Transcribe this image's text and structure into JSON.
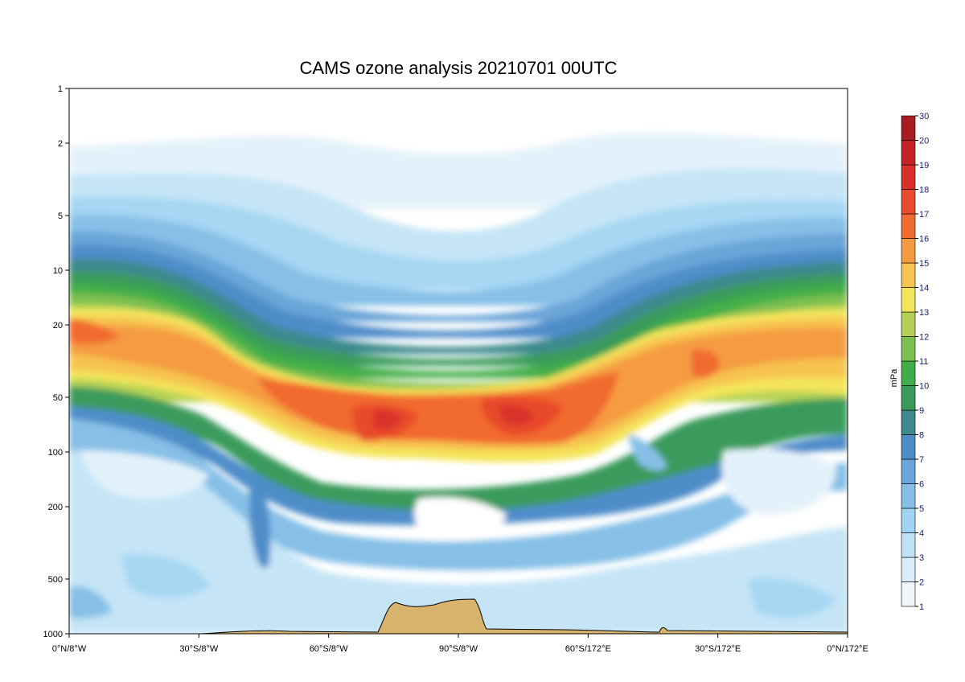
{
  "chart_data": {
    "type": "heatmap",
    "title": "CAMS ozone analysis 20210701 00UTC",
    "xlabel": "",
    "ylabel": "",
    "x_ticks": [
      "0°N/8°W",
      "30°S/8°W",
      "60°S/8°W",
      "90°S/8°W",
      "60°S/172°E",
      "30°S/172°E",
      "0°N/172°E"
    ],
    "y_ticks": [
      "1",
      "2",
      "5",
      "10",
      "20",
      "50",
      "100",
      "200",
      "500",
      "1000"
    ],
    "y_values_hPa": [
      1,
      2,
      5,
      10,
      20,
      50,
      100,
      200,
      500,
      1000
    ],
    "y_scale": "log",
    "y_direction": "decreasing-upwards",
    "colorbar": {
      "label": "mPa",
      "levels": [
        "1",
        "2",
        "3",
        "4",
        "5",
        "6",
        "7",
        "8",
        "9",
        "10",
        "11",
        "12",
        "13",
        "14",
        "15",
        "16",
        "17",
        "18",
        "19",
        "20",
        "30"
      ],
      "colors": [
        "#eef6fb",
        "#d8edf8",
        "#bfe3f6",
        "#9fd5f2",
        "#85bfe6",
        "#6aa6d9",
        "#4d8cc9",
        "#3f8a8c",
        "#3a9b5c",
        "#3fae49",
        "#7dc04f",
        "#b4d155",
        "#f3e55a",
        "#f6c450",
        "#f59a41",
        "#f16b30",
        "#e84b2d",
        "#d9302c",
        "#c52228",
        "#a81c22"
      ]
    },
    "max_ozone_regions": [
      {
        "location": "around 90°S, 60–70 hPa",
        "level": "19"
      },
      {
        "location": "around 60°S/172°E, 60 hPa",
        "level": "18"
      },
      {
        "location": "0°N/8°W edge, 20 hPa",
        "level": "16"
      }
    ],
    "orography": "tan filled terrain near 90°S reaching ~650 hPa",
    "grid": false
  }
}
